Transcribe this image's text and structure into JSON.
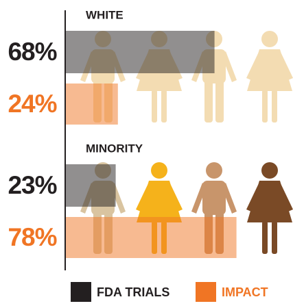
{
  "chart_data": {
    "type": "bar",
    "orientation": "horizontal",
    "categories": [
      "WHITE",
      "MINORITY"
    ],
    "series": [
      {
        "name": "FDA TRIALS",
        "color": "#231f20",
        "values": [
          68,
          23
        ],
        "value_labels": [
          "68%",
          "23%"
        ]
      },
      {
        "name": "IMPACT",
        "color": "#f07524",
        "values": [
          24,
          78
        ],
        "value_labels": [
          "24%",
          "78%"
        ]
      }
    ],
    "xlim": [
      0,
      100
    ]
  }
}
